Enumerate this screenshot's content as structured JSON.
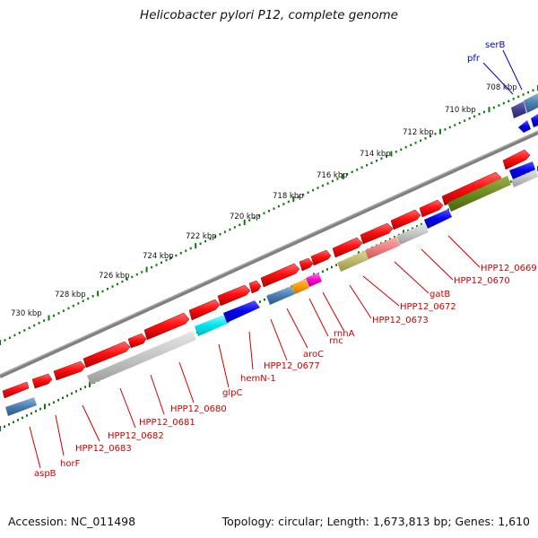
{
  "title": "Helicobacter pylori P12, complete genome",
  "accession": "Accession: NC_011498",
  "summary": "Topology: circular; Length: 1,673,813 bp; Genes: 1,610",
  "scale_ticks": [
    "708 kbp",
    "710 kbp",
    "712 kbp",
    "714 kbp",
    "716 kbp",
    "718 kbp",
    "720 kbp",
    "722 kbp",
    "724 kbp",
    "726 kbp",
    "728 kbp",
    "730 kbp"
  ],
  "gene_labels": [
    {
      "name": "serB",
      "color": "#0000cc"
    },
    {
      "name": "pfr",
      "color": "#0000cc"
    },
    {
      "name": "HPP12_0669",
      "color": "#cc0000"
    },
    {
      "name": "HPP12_0670",
      "color": "#cc0000"
    },
    {
      "name": "gatB",
      "color": "#cc0000"
    },
    {
      "name": "HPP12_0672",
      "color": "#cc0000"
    },
    {
      "name": "HPP12_0673",
      "color": "#cc0000"
    },
    {
      "name": "rnhA",
      "color": "#cc0000"
    },
    {
      "name": "rnc",
      "color": "#cc0000"
    },
    {
      "name": "aroC",
      "color": "#cc0000"
    },
    {
      "name": "HPP12_0677",
      "color": "#cc0000"
    },
    {
      "name": "hemN-1",
      "color": "#cc0000"
    },
    {
      "name": "glpC",
      "color": "#cc0000"
    },
    {
      "name": "HPP12_0680",
      "color": "#cc0000"
    },
    {
      "name": "HPP12_0681",
      "color": "#cc0000"
    },
    {
      "name": "HPP12_0682",
      "color": "#cc0000"
    },
    {
      "name": "HPP12_0683",
      "color": "#cc0000"
    },
    {
      "name": "horF",
      "color": "#cc0000"
    },
    {
      "name": "aspB",
      "color": "#cc0000"
    }
  ],
  "colors": {
    "forward_feature": "#ff0000",
    "scale_dots": "#0a7a0a",
    "backbone": "#777777",
    "label_red": "#cc0000",
    "label_blue": "#0000cc"
  }
}
